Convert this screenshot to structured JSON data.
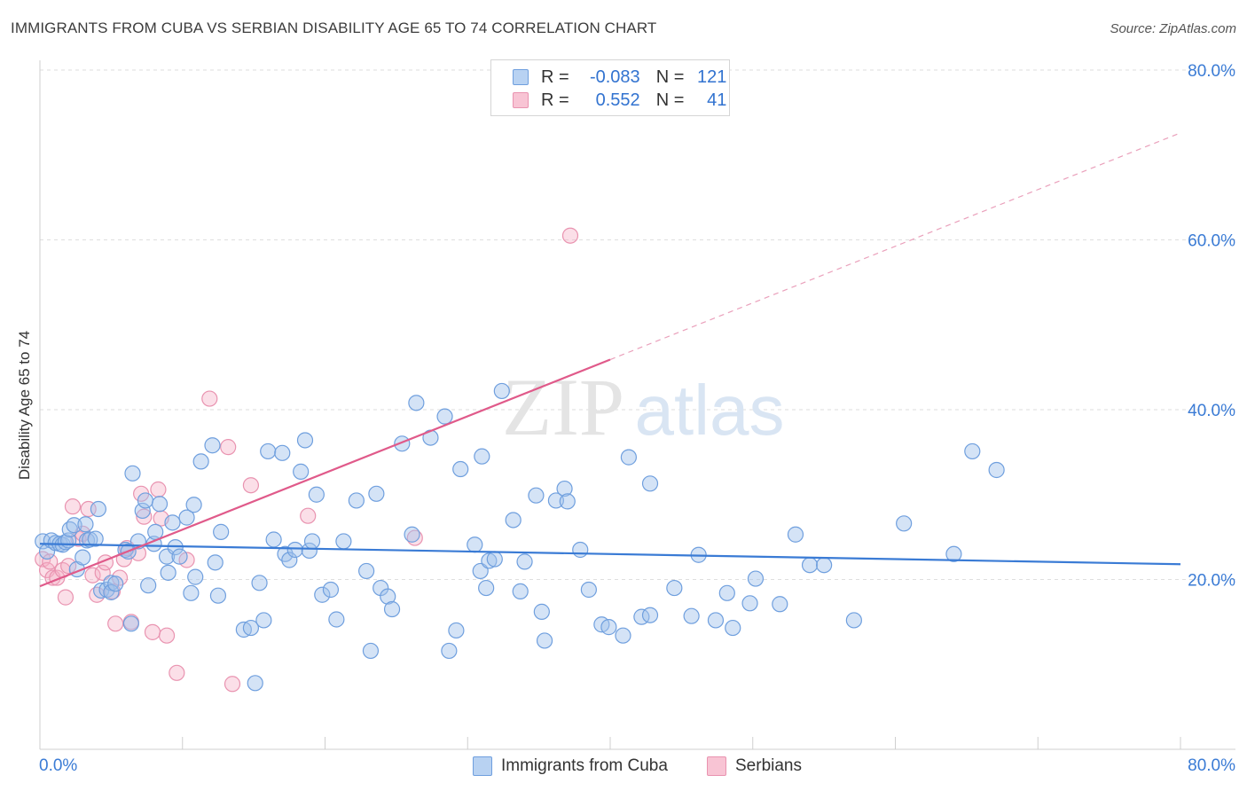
{
  "title": "IMMIGRANTS FROM CUBA VS SERBIAN DISABILITY AGE 65 TO 74 CORRELATION CHART",
  "source": "Source: ZipAtlas.com",
  "watermark": {
    "zip": "ZIP",
    "atlas": "atlas"
  },
  "legend": {
    "r_label": "R =",
    "n_label": "N =",
    "series": [
      {
        "name": "Immigrants from Cuba",
        "r": "-0.083",
        "n": "121",
        "color": "#3a7bd5"
      },
      {
        "name": "Serbians",
        "r": "0.552",
        "n": "41",
        "color": "#e05a8a"
      }
    ]
  },
  "chart_data": {
    "type": "scatter",
    "title": "IMMIGRANTS FROM CUBA VS SERBIAN DISABILITY AGE 65 TO 74 CORRELATION CHART",
    "xlabel": "",
    "ylabel": "Disability Age 65 to 74",
    "xlim": [
      0,
      80
    ],
    "ylim": [
      0,
      80
    ],
    "x_tick_labels": [
      "0.0%",
      "80.0%"
    ],
    "y_tick_labels": [
      "20.0%",
      "40.0%",
      "60.0%",
      "80.0%"
    ],
    "y_ticks": [
      20,
      40,
      60,
      80
    ],
    "series": [
      {
        "name": "Immigrants from Cuba",
        "color": "#3a7bd5",
        "trend": {
          "x": [
            0,
            80
          ],
          "y": [
            24.2,
            21.8
          ],
          "style": "solid"
        },
        "points": [
          [
            0.2,
            24.5
          ],
          [
            0.5,
            23.3
          ],
          [
            0.8,
            24.6
          ],
          [
            1.1,
            24.3
          ],
          [
            1.4,
            24.2
          ],
          [
            1.6,
            24.1
          ],
          [
            1.8,
            24.4
          ],
          [
            2.0,
            24.6
          ],
          [
            2.1,
            25.9
          ],
          [
            2.4,
            26.4
          ],
          [
            2.6,
            21.2
          ],
          [
            3.0,
            22.6
          ],
          [
            3.2,
            26.5
          ],
          [
            3.3,
            24.6
          ],
          [
            3.5,
            24.7
          ],
          [
            3.9,
            24.8
          ],
          [
            4.1,
            28.3
          ],
          [
            4.3,
            18.7
          ],
          [
            4.7,
            18.8
          ],
          [
            5.0,
            19.6
          ],
          [
            5.0,
            18.5
          ],
          [
            5.3,
            19.5
          ],
          [
            6.0,
            23.5
          ],
          [
            6.2,
            23.3
          ],
          [
            6.4,
            14.8
          ],
          [
            6.5,
            32.5
          ],
          [
            6.9,
            24.5
          ],
          [
            7.2,
            28.1
          ],
          [
            7.4,
            29.3
          ],
          [
            7.6,
            19.3
          ],
          [
            8.0,
            24.2
          ],
          [
            8.1,
            25.6
          ],
          [
            8.4,
            28.9
          ],
          [
            8.9,
            22.7
          ],
          [
            9.0,
            20.8
          ],
          [
            9.3,
            26.7
          ],
          [
            9.5,
            23.8
          ],
          [
            9.8,
            22.7
          ],
          [
            10.3,
            27.3
          ],
          [
            10.6,
            18.4
          ],
          [
            10.8,
            28.8
          ],
          [
            10.9,
            20.3
          ],
          [
            11.3,
            33.9
          ],
          [
            12.1,
            35.8
          ],
          [
            12.3,
            22.0
          ],
          [
            12.5,
            18.1
          ],
          [
            12.7,
            25.6
          ],
          [
            14.3,
            14.1
          ],
          [
            14.8,
            14.3
          ],
          [
            15.1,
            7.8
          ],
          [
            15.4,
            19.6
          ],
          [
            15.7,
            15.2
          ],
          [
            16.0,
            35.1
          ],
          [
            16.4,
            24.7
          ],
          [
            17.0,
            34.9
          ],
          [
            17.2,
            23.0
          ],
          [
            17.5,
            22.3
          ],
          [
            17.9,
            23.5
          ],
          [
            18.3,
            32.7
          ],
          [
            18.6,
            36.4
          ],
          [
            18.9,
            23.4
          ],
          [
            19.1,
            24.5
          ],
          [
            19.4,
            30.0
          ],
          [
            19.8,
            18.2
          ],
          [
            20.4,
            18.8
          ],
          [
            20.8,
            15.3
          ],
          [
            21.3,
            24.5
          ],
          [
            22.2,
            29.3
          ],
          [
            22.9,
            21.0
          ],
          [
            23.2,
            11.6
          ],
          [
            23.6,
            30.1
          ],
          [
            23.9,
            19.0
          ],
          [
            24.4,
            18.0
          ],
          [
            24.7,
            16.5
          ],
          [
            25.4,
            36.0
          ],
          [
            26.1,
            25.3
          ],
          [
            26.4,
            40.8
          ],
          [
            27.4,
            36.7
          ],
          [
            28.4,
            39.2
          ],
          [
            28.7,
            11.6
          ],
          [
            29.2,
            14.0
          ],
          [
            29.5,
            33.0
          ],
          [
            30.5,
            24.1
          ],
          [
            30.9,
            21.0
          ],
          [
            31.3,
            19.0
          ],
          [
            31.5,
            22.2
          ],
          [
            31.9,
            22.4
          ],
          [
            32.4,
            42.2
          ],
          [
            31.0,
            34.5
          ],
          [
            33.2,
            27.0
          ],
          [
            33.7,
            18.6
          ],
          [
            34.0,
            22.1
          ],
          [
            34.8,
            29.9
          ],
          [
            35.2,
            16.2
          ],
          [
            35.4,
            12.8
          ],
          [
            36.2,
            29.3
          ],
          [
            36.8,
            30.7
          ],
          [
            37.0,
            29.2
          ],
          [
            37.9,
            23.5
          ],
          [
            38.5,
            18.8
          ],
          [
            39.4,
            14.7
          ],
          [
            39.9,
            14.4
          ],
          [
            40.9,
            13.4
          ],
          [
            41.3,
            34.4
          ],
          [
            42.2,
            15.6
          ],
          [
            42.8,
            15.8
          ],
          [
            42.8,
            31.3
          ],
          [
            44.5,
            19.0
          ],
          [
            45.7,
            15.7
          ],
          [
            46.2,
            22.9
          ],
          [
            47.4,
            15.2
          ],
          [
            48.2,
            18.4
          ],
          [
            48.6,
            14.3
          ],
          [
            49.8,
            17.2
          ],
          [
            50.2,
            20.1
          ],
          [
            51.9,
            17.1
          ],
          [
            53.0,
            25.3
          ],
          [
            54.0,
            21.7
          ],
          [
            55.0,
            21.7
          ],
          [
            57.1,
            15.2
          ],
          [
            60.6,
            26.6
          ],
          [
            64.1,
            23.0
          ],
          [
            65.4,
            35.1
          ],
          [
            67.1,
            32.9
          ]
        ]
      },
      {
        "name": "Serbians",
        "color": "#e05a8a",
        "trend": {
          "x": [
            0,
            40
          ],
          "y": [
            19.2,
            45.9
          ],
          "style": "solid",
          "extension": {
            "x": [
              40,
              80
            ],
            "y": [
              45.9,
              72.6
            ],
            "style": "dashed"
          }
        },
        "points": [
          [
            0.2,
            22.4
          ],
          [
            0.5,
            21.1
          ],
          [
            0.7,
            22.1
          ],
          [
            0.9,
            20.2
          ],
          [
            1.2,
            20.2
          ],
          [
            1.6,
            21.1
          ],
          [
            1.8,
            17.9
          ],
          [
            2.0,
            21.6
          ],
          [
            2.3,
            28.6
          ],
          [
            2.7,
            24.8
          ],
          [
            3.0,
            25.4
          ],
          [
            3.4,
            28.3
          ],
          [
            3.7,
            20.5
          ],
          [
            4.0,
            18.2
          ],
          [
            4.4,
            20.8
          ],
          [
            4.6,
            22.0
          ],
          [
            5.1,
            18.6
          ],
          [
            5.3,
            14.8
          ],
          [
            5.6,
            20.2
          ],
          [
            5.9,
            22.4
          ],
          [
            6.1,
            23.7
          ],
          [
            6.4,
            15.0
          ],
          [
            6.9,
            23.1
          ],
          [
            7.1,
            30.1
          ],
          [
            7.3,
            27.4
          ],
          [
            7.9,
            13.8
          ],
          [
            8.3,
            30.6
          ],
          [
            8.5,
            27.2
          ],
          [
            8.9,
            13.4
          ],
          [
            9.6,
            9.0
          ],
          [
            10.3,
            22.3
          ],
          [
            11.9,
            41.3
          ],
          [
            13.2,
            35.6
          ],
          [
            13.5,
            7.7
          ],
          [
            14.8,
            31.1
          ],
          [
            18.8,
            27.5
          ],
          [
            26.3,
            24.9
          ],
          [
            37.2,
            60.5
          ]
        ]
      }
    ]
  }
}
